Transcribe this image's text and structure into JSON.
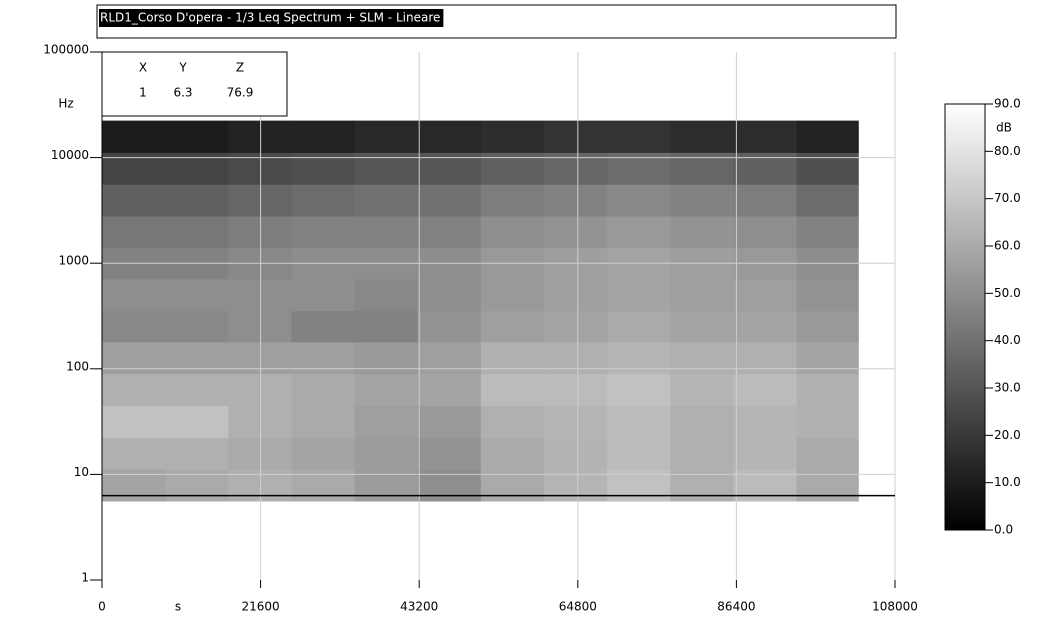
{
  "chart_data": {
    "type": "heatmap",
    "title": "RLD1_Corso D'opera - 1/3 Leq Spectrum + SLM - Lineare",
    "x_label": "s",
    "y_label": "Hz",
    "xlim": [
      0,
      108000
    ],
    "xticks": [
      0,
      21600,
      43200,
      64800,
      86400,
      108000
    ],
    "ylim": [
      1,
      100000
    ],
    "yticks": [
      1,
      10,
      100,
      1000,
      10000,
      100000
    ],
    "y_log": true,
    "grid": true,
    "x_bins": [
      0,
      8600,
      17200,
      25800,
      34400,
      43000,
      51600,
      60200,
      68800,
      77400,
      86000,
      94600,
      103000
    ],
    "y_bins": [
      5.6,
      11.2,
      22.4,
      45,
      90,
      180,
      355,
      710,
      1400,
      2800,
      5600,
      11200,
      22400
    ],
    "z": [
      [
        58,
        60,
        62,
        60,
        55,
        50,
        60,
        64,
        68,
        62,
        66,
        60
      ],
      [
        62,
        62,
        60,
        58,
        55,
        52,
        60,
        63,
        66,
        62,
        64,
        60
      ],
      [
        68,
        68,
        62,
        60,
        56,
        54,
        62,
        64,
        66,
        62,
        64,
        62
      ],
      [
        62,
        62,
        62,
        60,
        58,
        58,
        66,
        66,
        68,
        64,
        66,
        62
      ],
      [
        56,
        56,
        56,
        56,
        54,
        56,
        62,
        62,
        64,
        62,
        62,
        58
      ],
      [
        48,
        48,
        50,
        46,
        46,
        52,
        56,
        58,
        60,
        58,
        58,
        54
      ],
      [
        50,
        50,
        50,
        50,
        48,
        50,
        54,
        56,
        58,
        56,
        56,
        52
      ],
      [
        46,
        46,
        48,
        50,
        50,
        50,
        54,
        56,
        58,
        56,
        54,
        50
      ],
      [
        42,
        42,
        44,
        46,
        46,
        46,
        50,
        52,
        54,
        52,
        50,
        46
      ],
      [
        34,
        34,
        36,
        38,
        40,
        40,
        44,
        46,
        48,
        46,
        44,
        38
      ],
      [
        24,
        24,
        26,
        28,
        30,
        30,
        34,
        36,
        38,
        36,
        34,
        28
      ],
      [
        10,
        10,
        12,
        12,
        14,
        14,
        16,
        18,
        18,
        16,
        16,
        12
      ]
    ],
    "colormap": [
      "#000000",
      "#ffffff"
    ],
    "zlim": [
      0,
      90
    ],
    "zticks": [
      {
        "value": 0,
        "label": "0.0"
      },
      {
        "value": 10,
        "label": "10.0"
      },
      {
        "value": 20,
        "label": "20.0"
      },
      {
        "value": 30,
        "label": "30.0"
      },
      {
        "value": 40,
        "label": "40.0"
      },
      {
        "value": 50,
        "label": "50.0"
      },
      {
        "value": 60,
        "label": "60.0"
      },
      {
        "value": 70,
        "label": "70.0"
      },
      {
        "value": 80,
        "label": "80.0"
      },
      {
        "value": 90,
        "label": "90.0"
      }
    ],
    "z_label": "dB",
    "cursor": {
      "headers": [
        "X",
        "Y",
        "Z"
      ],
      "values": [
        1,
        6.3,
        76.9
      ]
    }
  }
}
